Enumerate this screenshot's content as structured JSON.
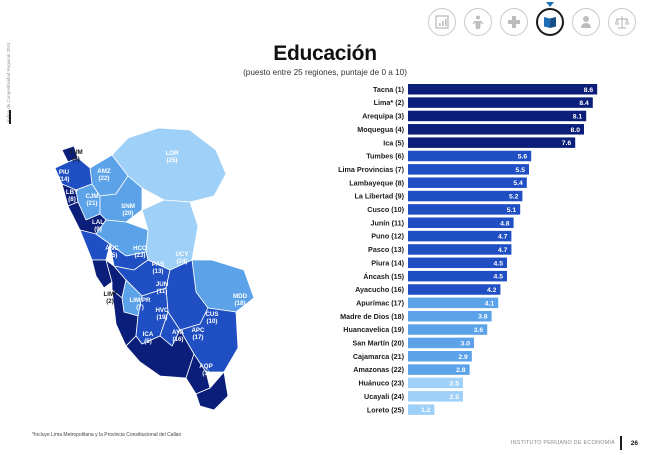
{
  "side_note": "Índice de Competitividad Regional 2015",
  "nav": {
    "icons": [
      "economy-icon",
      "labor-icon",
      "health-icon",
      "education-icon",
      "institutions-icon",
      "justice-icon"
    ],
    "active": 3
  },
  "colors": {
    "dark": "#0b1f7a",
    "mid": "#1f4fc2",
    "light": "#5ba2e8",
    "pale": "#9fd0f7"
  },
  "chart_data": [
    {
      "type": "bar",
      "orientation": "horizontal",
      "title": "Educación",
      "subtitle": "(puesto entre 25 regiones, puntaje de 0 a 10)",
      "categories": [
        "Tacna (1)",
        "Lima* (2)",
        "Arequipa (3)",
        "Moquegua (4)",
        "Ica (5)",
        "Tumbes (6)",
        "Lima Provincias (7)",
        "Lambayeque (8)",
        "La Libertad (9)",
        "Cusco (10)",
        "Junín (11)",
        "Puno (12)",
        "Pasco (13)",
        "Piura (14)",
        "Áncash (15)",
        "Ayacucho (16)",
        "Apurímac (17)",
        "Madre de Dios (18)",
        "Huancavelica (19)",
        "San Martín (20)",
        "Cajamarca (21)",
        "Amazonas (22)",
        "Huánuco (23)",
        "Ucayali (24)",
        "Loreto (25)"
      ],
      "values": [
        8.6,
        8.4,
        8.1,
        8.0,
        7.6,
        5.6,
        5.5,
        5.4,
        5.2,
        5.1,
        4.8,
        4.7,
        4.7,
        4.5,
        4.5,
        4.2,
        4.1,
        3.8,
        3.6,
        3.0,
        2.9,
        2.8,
        2.5,
        2.5,
        1.2
      ],
      "value_labels": [
        "8.6",
        "8.4",
        "8.1",
        "8.0",
        "7.6",
        "5.6",
        "5.5",
        "5.4",
        "5.2",
        "5.1",
        "4.8",
        "4.7",
        "4.7",
        "4.5",
        "4.5",
        "4.2",
        "4.1",
        "3.8",
        "3.6",
        "3.0",
        "2.9",
        "2.8",
        "2.5",
        "2.5",
        "1.2"
      ],
      "xlim": [
        0,
        10
      ]
    },
    {
      "type": "choropleth",
      "regions": [
        {
          "code": "TUM",
          "rank": 6,
          "label": "TUM",
          "rank_label": "(6)"
        },
        {
          "code": "PIU",
          "rank": 14,
          "label": "PIU",
          "rank_label": "(14)"
        },
        {
          "code": "AMZ",
          "rank": 22,
          "label": "AMZ",
          "rank_label": "(22)"
        },
        {
          "code": "LOR",
          "rank": 25,
          "label": "LOR",
          "rank_label": "(25)"
        },
        {
          "code": "LBY",
          "rank": 8,
          "label": "LBY",
          "rank_label": "(8)"
        },
        {
          "code": "CJM",
          "rank": 21,
          "label": "CJM",
          "rank_label": "(21)"
        },
        {
          "code": "SNM",
          "rank": 20,
          "label": "SNM",
          "rank_label": "(20)"
        },
        {
          "code": "LAL",
          "rank": 9,
          "label": "LAL",
          "rank_label": "(9)"
        },
        {
          "code": "ANC",
          "rank": 15,
          "label": "ÁNC",
          "rank_label": "(15)"
        },
        {
          "code": "HCO",
          "rank": 23,
          "label": "HCO",
          "rank_label": "(23)"
        },
        {
          "code": "UCY",
          "rank": 24,
          "label": "UCY",
          "rank_label": "(24)"
        },
        {
          "code": "PAS",
          "rank": 13,
          "label": "PAS",
          "rank_label": "(13)"
        },
        {
          "code": "JUN",
          "rank": 11,
          "label": "JUN",
          "rank_label": "(11)"
        },
        {
          "code": "LIM",
          "rank": 2,
          "label": "LIM*",
          "rank_label": "(2)"
        },
        {
          "code": "LPR",
          "rank": 7,
          "label": "LIM PR",
          "rank_label": "(7)"
        },
        {
          "code": "MDD",
          "rank": 18,
          "label": "MDD",
          "rank_label": "(18)"
        },
        {
          "code": "HVC",
          "rank": 19,
          "label": "HVC",
          "rank_label": "(19)"
        },
        {
          "code": "CUS",
          "rank": 10,
          "label": "CUS",
          "rank_label": "(10)"
        },
        {
          "code": "ICA",
          "rank": 5,
          "label": "ICA",
          "rank_label": "(5)"
        },
        {
          "code": "AYA",
          "rank": 16,
          "label": "AYA",
          "rank_label": "(16)"
        },
        {
          "code": "APC",
          "rank": 17,
          "label": "APC",
          "rank_label": "(17)"
        },
        {
          "code": "PUN",
          "rank": 12,
          "label": "PUN",
          "rank_label": "(12)"
        },
        {
          "code": "AQP",
          "rank": 3,
          "label": "AQP",
          "rank_label": "(3)"
        },
        {
          "code": "MOQ",
          "rank": 4,
          "label": "MOQ",
          "rank_label": "(4)"
        },
        {
          "code": "TAC",
          "rank": 1,
          "label": "TAC",
          "rank_label": "(1)"
        }
      ]
    }
  ],
  "footnote": "*Incluye Lima Metropolitana y la Provincia Constitucional del Callao",
  "footer": {
    "org": "INSTITUTO PERUANO DE ECONOMÍA",
    "page": "26"
  }
}
